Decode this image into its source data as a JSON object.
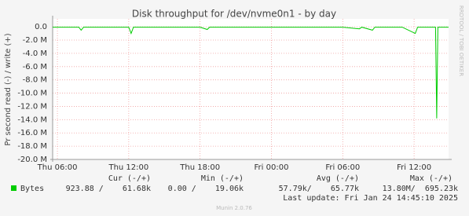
{
  "chart_data": {
    "type": "line",
    "title": "Disk throughput for /dev/nvme0n1 - by day",
    "y_label": "Pr second read (-) / write (+)",
    "side_text": "RRDTOOL / TOBI OETIKER",
    "x": [
      5.6,
      6,
      7,
      7.8,
      8,
      8.2,
      9,
      10,
      11,
      12,
      12.2,
      12.4,
      13,
      14,
      15,
      16,
      17,
      18,
      18.6,
      18.8,
      19,
      20,
      22,
      24,
      26,
      28,
      30,
      31.4,
      31.6,
      32.5,
      32.7,
      34,
      35,
      36.1,
      36.3,
      37,
      37.8,
      37.9,
      38,
      38.9
    ],
    "series": [
      {
        "name": "Bytes",
        "color": "#00cc00",
        "values": [
          -0.05,
          -0.05,
          -0.05,
          -0.05,
          -0.5,
          -0.05,
          -0.05,
          -0.05,
          -0.05,
          -0.05,
          -1.0,
          -0.05,
          -0.05,
          -0.05,
          -0.05,
          -0.05,
          -0.05,
          -0.05,
          -0.4,
          -0.05,
          -0.05,
          -0.05,
          -0.05,
          -0.05,
          -0.05,
          -0.05,
          -0.05,
          -0.3,
          -0.05,
          -0.5,
          -0.05,
          -0.05,
          -0.05,
          -1.0,
          -0.05,
          -0.05,
          -0.05,
          -13.8,
          -0.05,
          -0.05
        ]
      }
    ],
    "xlim": [
      5.6,
      38.9
    ],
    "xticks": [
      {
        "value": 6,
        "label": "Thu 06:00"
      },
      {
        "value": 12,
        "label": "Thu 12:00"
      },
      {
        "value": 18,
        "label": "Thu 18:00"
      },
      {
        "value": 24,
        "label": "Fri 00:00"
      },
      {
        "value": 30,
        "label": "Fri 06:00"
      },
      {
        "value": 36,
        "label": "Fri 12:00"
      }
    ],
    "ylim": [
      -20,
      1.2
    ],
    "yticks": [
      {
        "value": 0,
        "label": "0.0"
      },
      {
        "value": -2,
        "label": "-2.0 M"
      },
      {
        "value": -4,
        "label": "-4.0 M"
      },
      {
        "value": -6,
        "label": "-6.0 M"
      },
      {
        "value": -8,
        "label": "-8.0 M"
      },
      {
        "value": -10,
        "label": "-10.0 M"
      },
      {
        "value": -12,
        "label": "-12.0 M"
      },
      {
        "value": -14,
        "label": "-14.0 M"
      },
      {
        "value": -16,
        "label": "-16.0 M"
      },
      {
        "value": -18,
        "label": "-18.0 M"
      },
      {
        "value": -20,
        "label": "-20.0 M"
      }
    ],
    "grid": true,
    "legend_headers": [
      "Cur (-/+)",
      "Min (-/+)",
      "Avg (-/+)",
      "Max (-/+)"
    ],
    "legend_values": [
      "923.88 /    61.68k",
      "0.00 /    19.06k",
      "57.79k/    65.77k",
      "13.80M/  695.23k"
    ],
    "last_update": "Last update: Fri Jan 24 14:45:10 2025",
    "footer": "Munin 2.0.76"
  }
}
